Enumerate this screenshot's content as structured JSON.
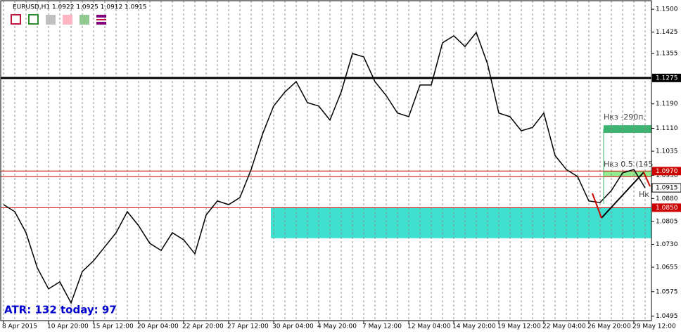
{
  "chart_data": {
    "type": "line",
    "title": "EURUSD,H1  1.0922 1.0925 1.0912 1.0915",
    "categories": [
      "8 Apr 2015",
      null,
      null,
      null,
      "10 Apr 20:00",
      null,
      null,
      null,
      "15 Apr 12:00",
      null,
      null,
      null,
      "20 Apr 04:00",
      null,
      null,
      null,
      "22 Apr 20:00",
      null,
      null,
      null,
      "27 Apr 12:00",
      null,
      null,
      null,
      "30 Apr 04:00",
      null,
      null,
      null,
      "4 May 20:00",
      null,
      null,
      null,
      "7 May 12:00",
      null,
      null,
      null,
      "12 May 04:00",
      null,
      null,
      null,
      "14 May 20:00",
      null,
      null,
      null,
      "19 May 12:00",
      null,
      null,
      null,
      "22 May 04:00",
      null,
      null,
      null,
      "26 May 20:00",
      null,
      null,
      null,
      "29 May 12:00",
      null
    ],
    "values": [
      1.086,
      1.0837,
      1.0768,
      1.0653,
      1.0584,
      1.0607,
      1.0538,
      1.0641,
      1.0676,
      1.0722,
      1.0768,
      1.0837,
      1.0791,
      1.0733,
      1.071,
      1.0768,
      1.0745,
      1.0699,
      1.0826,
      1.0872,
      1.086,
      1.0883,
      1.0975,
      1.109,
      1.1183,
      1.1229,
      1.1263,
      1.1194,
      1.1183,
      1.1137,
      1.1229,
      1.1355,
      1.1344,
      1.1263,
      1.1217,
      1.116,
      1.1148,
      1.1252,
      1.1252,
      1.139,
      1.1413,
      1.1378,
      1.1424,
      1.1321,
      1.116,
      1.1148,
      1.1102,
      1.1113,
      1.116,
      1.1021,
      1.0975,
      1.0952,
      1.0872,
      1.0867,
      1.0906,
      1.0964,
      1.0975,
      1.0915
    ],
    "color": "#000000",
    "ylim": [
      1.048,
      1.1528
    ],
    "yticks": [
      {
        "value": 1.15,
        "label": "1.1500"
      },
      1.1425,
      1.1355,
      {
        "value": 1.119,
        "label": "1.1190"
      },
      {
        "value": 1.111,
        "label": "1.1110"
      },
      1.1035,
      1.0956,
      {
        "value": 1.088,
        "label": "1.0880"
      },
      1.0805,
      {
        "value": 1.073,
        "label": "1.0730"
      },
      1.0655,
      1.0575,
      1.0495
    ],
    "grid": true,
    "levels": [
      {
        "value": 1.1275,
        "label": "1.1275",
        "color": "#000000"
      },
      {
        "value": 1.097,
        "label": "1.0970",
        "color": "#cc0000"
      },
      {
        "value": 1.0952,
        "color": "#cc0000"
      },
      {
        "value": 1.085,
        "label": "1.0850",
        "color": "#cc0000"
      }
    ],
    "current": {
      "value": 1.0915,
      "label": "1.0915"
    },
    "zones": [
      {
        "low": 1.075,
        "high": 1.085,
        "color": "#40e0d0"
      },
      {
        "low": 1.1095,
        "high": 1.112,
        "color": "#3cb371"
      },
      {
        "low": 1.0952,
        "high": 1.097,
        "color": "#90ee90"
      }
    ],
    "annotations": [
      "Нкз -290п.",
      "Нкз 0.5 (145",
      "Нк"
    ],
    "atr_text": "ATR: 132  today: 97"
  }
}
